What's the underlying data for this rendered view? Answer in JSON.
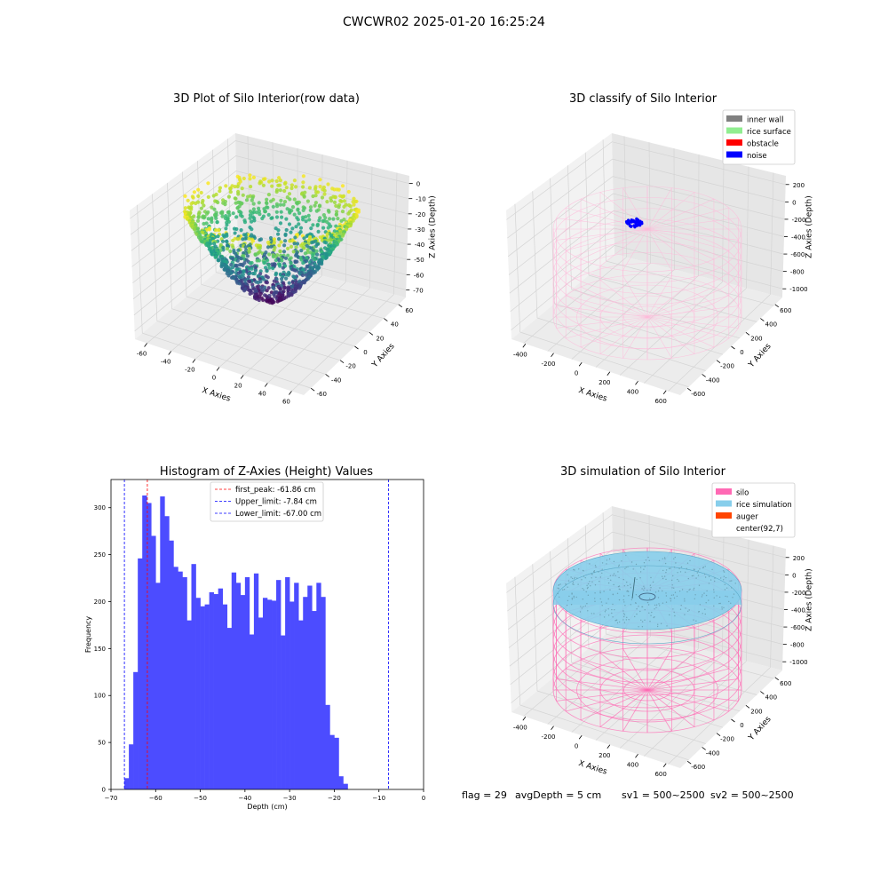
{
  "figure": {
    "suptitle": "CWCWR02 2025-01-20 16:25:24"
  },
  "status_line": {
    "flag": "flag = 29",
    "avg_depth": "avgDepth = 5 cm",
    "sv1": "sv1 = 500~2500",
    "sv2": "sv2 = 500~2500"
  },
  "colors": {
    "histogram_bar": "#4c4cff",
    "first_peak_line": "#ff0000",
    "limit_line": "#0000ff",
    "inner_wall": "#808080",
    "rice_surface": "#90ee90",
    "obstacle": "#ff0000",
    "noise": "#0000ff",
    "silo": "#ff69b4",
    "rice_simulation": "#87ceeb",
    "auger": "#ff4500"
  },
  "chart_data": [
    {
      "id": "raw",
      "type": "scatter",
      "title": "3D Plot of Silo Interior(row data)",
      "xlabel": "X Axies",
      "ylabel": "Y Axies",
      "zlabel": "Z Axies (Depth)",
      "xlim": [
        -60,
        60
      ],
      "ylim": [
        -60,
        60
      ],
      "zlim": [
        -70,
        0
      ],
      "x_ticks": [
        "-60",
        "-40",
        "-20",
        "0",
        "20",
        "40",
        "60"
      ],
      "y_ticks": [
        "-60",
        "-40",
        "-20",
        "0",
        "20",
        "40",
        "60"
      ],
      "z_ticks": [
        "0",
        "-10",
        "-20",
        "-30",
        "-40",
        "-50",
        "-60",
        "-70"
      ],
      "surface": "bowl-shaped point cloud, radius about 45, depth 0 at rim to about -67 at center",
      "colormap": "viridis",
      "grid": true
    },
    {
      "id": "classify",
      "type": "scatter",
      "title": "3D classify of Silo Interior",
      "xlabel": "X Axies",
      "ylabel": "Y Axies",
      "zlabel": "Z Axies (Depth)",
      "xlim": [
        -500,
        700
      ],
      "ylim": [
        -600,
        600
      ],
      "zlim": [
        -1000,
        300
      ],
      "x_ticks": [
        "-400",
        "-200",
        "0",
        "200",
        "400",
        "600"
      ],
      "y_ticks": [
        "-600",
        "-400",
        "-200",
        "0",
        "200",
        "400",
        "600"
      ],
      "z_ticks": [
        "200",
        "0",
        "-200",
        "-400",
        "-600",
        "-800",
        "-1000"
      ],
      "legend": [
        "inner wall",
        "rice surface",
        "obstacle",
        "noise"
      ],
      "legend_position": "top-right",
      "silo_cylinder": {
        "center": [
          92,
          7
        ],
        "radius": 500,
        "z_top": 0,
        "z_bottom": -1000
      },
      "noise_cluster": {
        "center": [
          -60,
          -250,
          0
        ],
        "radius": 45
      },
      "grid": true
    },
    {
      "id": "histogram",
      "type": "bar",
      "title": "Histogram of Z-Axies (Height) Values",
      "xlabel": "Depth (cm)",
      "ylabel": "Frequency",
      "xlim": [
        -70,
        0
      ],
      "ylim": [
        0,
        330
      ],
      "x_ticks": [
        -70,
        -60,
        -50,
        -40,
        -30,
        -20,
        -10,
        0
      ],
      "y_ticks": [
        0,
        50,
        100,
        150,
        200,
        250,
        300
      ],
      "bin_start": -67.0,
      "bin_width": 1.0,
      "values": [
        12,
        48,
        125,
        246,
        313,
        305,
        270,
        220,
        312,
        291,
        265,
        237,
        232,
        226,
        180,
        240,
        204,
        195,
        197,
        210,
        208,
        214,
        197,
        172,
        231,
        220,
        207,
        226,
        165,
        230,
        183,
        204,
        202,
        201,
        223,
        164,
        226,
        200,
        220,
        180,
        205,
        217,
        190,
        220,
        205,
        90,
        58,
        55,
        14,
        6
      ],
      "lines": [
        {
          "label": "first_peak: -61.86 cm",
          "x": -61.86,
          "color": "#ff0000"
        },
        {
          "label": "Upper_limit: -7.84 cm",
          "x": -7.84,
          "color": "#0000ff"
        },
        {
          "label": "Lower_limit: -67.00 cm",
          "x": -67.0,
          "color": "#0000ff"
        }
      ],
      "legend_position": "top-center"
    },
    {
      "id": "simulation",
      "type": "scatter",
      "title": "3D simulation of Silo Interior",
      "xlabel": "X Axies",
      "ylabel": "Y Axies",
      "zlabel": "Z Axies (Depth)",
      "xlim": [
        -500,
        700
      ],
      "ylim": [
        -600,
        600
      ],
      "zlim": [
        -1000,
        300
      ],
      "x_ticks": [
        "-400",
        "-200",
        "0",
        "200",
        "400",
        "600"
      ],
      "y_ticks": [
        "-600",
        "-400",
        "-200",
        "0",
        "200",
        "400",
        "600"
      ],
      "z_ticks": [
        "200",
        "0",
        "-200",
        "-400",
        "-600",
        "-800",
        "-1000"
      ],
      "legend": [
        "silo",
        "rice simulation",
        "auger",
        "center(92,7)"
      ],
      "legend_position": "top-right",
      "silo_cylinder": {
        "center": [
          92,
          7
        ],
        "radius": 500,
        "z_top": 0,
        "z_bottom": -1000
      },
      "rice_level": -5,
      "grid": true
    }
  ]
}
